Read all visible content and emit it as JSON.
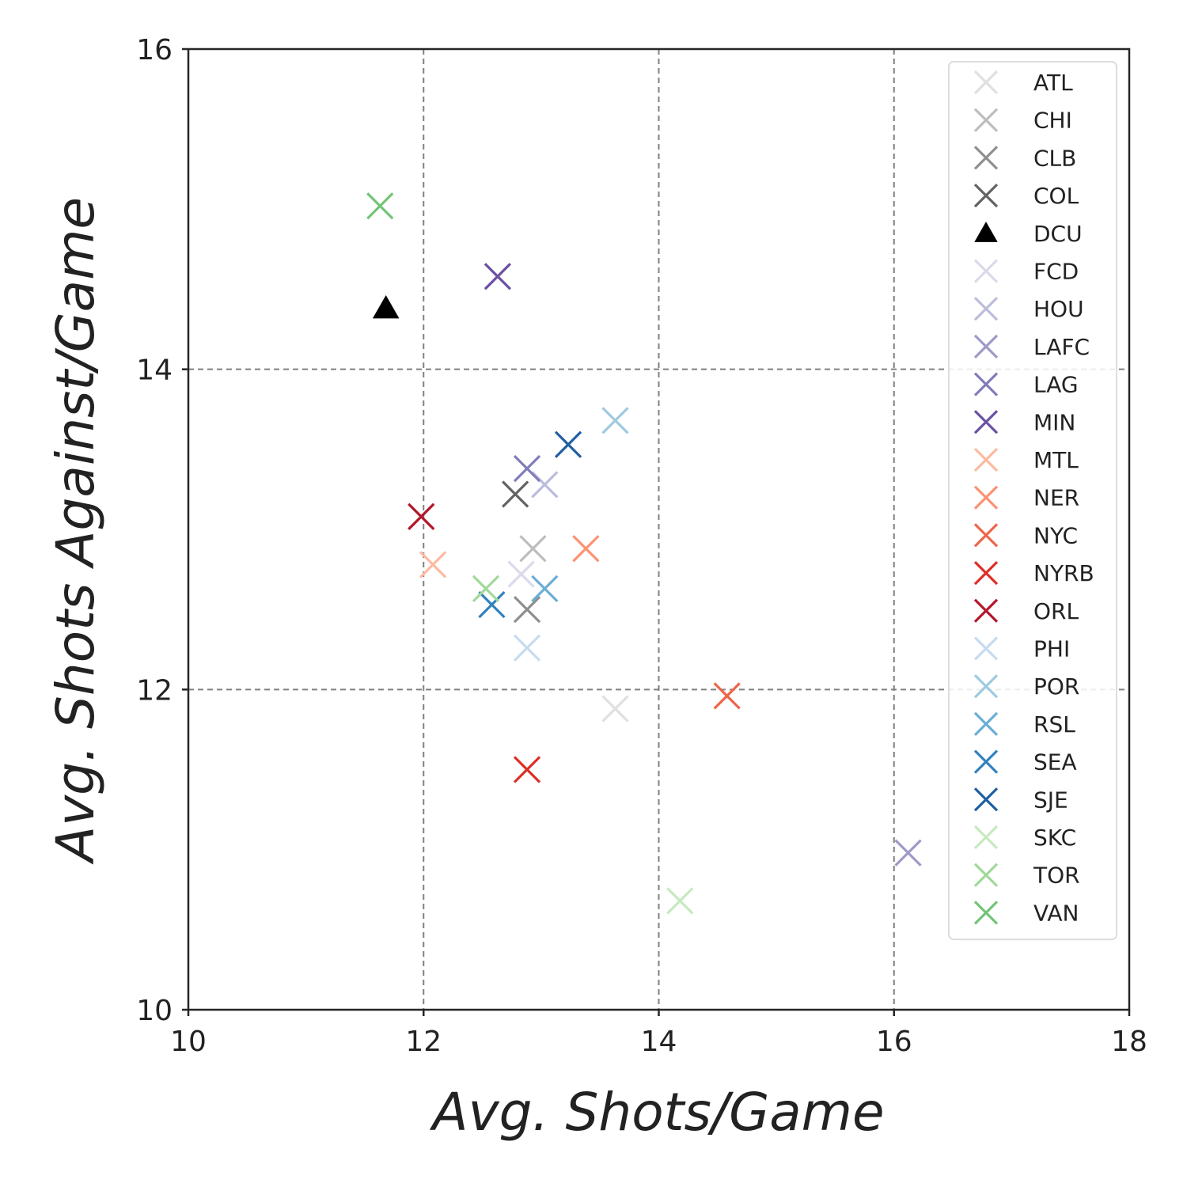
{
  "chart_data": {
    "type": "scatter",
    "title": "",
    "xlabel": "Avg. Shots/Game",
    "ylabel": "Avg. Shots Against/Game",
    "xlim": [
      10,
      18
    ],
    "ylim": [
      10,
      16
    ],
    "xticks": [
      "10",
      "12",
      "14",
      "16",
      "18"
    ],
    "yticks": [
      "10",
      "12",
      "14",
      "16"
    ],
    "grid": true,
    "legend_position": "right, inside plot area",
    "series": [
      {
        "name": "ATL",
        "marker": "x",
        "color": "#e0e0e0",
        "x": 13.63,
        "y": 11.88
      },
      {
        "name": "CHI",
        "marker": "x",
        "color": "#bdbdbd",
        "x": 12.93,
        "y": 12.88
      },
      {
        "name": "CLB",
        "marker": "x",
        "color": "#8f8f8f",
        "x": 12.88,
        "y": 12.5
      },
      {
        "name": "COL",
        "marker": "x",
        "color": "#636363",
        "x": 12.78,
        "y": 13.22
      },
      {
        "name": "DCU",
        "marker": "triangle",
        "color": "#000000",
        "x": 11.68,
        "y": 14.38
      },
      {
        "name": "FCD",
        "marker": "x",
        "color": "#dadaeb",
        "x": 12.83,
        "y": 12.72
      },
      {
        "name": "HOU",
        "marker": "x",
        "color": "#bcbddc",
        "x": 13.03,
        "y": 13.28
      },
      {
        "name": "LAFC",
        "marker": "x",
        "color": "#9e9ac8",
        "x": 16.12,
        "y": 10.98
      },
      {
        "name": "LAG",
        "marker": "x",
        "color": "#807dba",
        "x": 12.88,
        "y": 13.38
      },
      {
        "name": "MIN",
        "marker": "x",
        "color": "#6a51a3",
        "x": 12.63,
        "y": 14.58
      },
      {
        "name": "MTL",
        "marker": "x",
        "color": "#fcbba1",
        "x": 12.08,
        "y": 12.78
      },
      {
        "name": "NER",
        "marker": "x",
        "color": "#fc9272",
        "x": 13.38,
        "y": 12.88
      },
      {
        "name": "NYC",
        "marker": "x",
        "color": "#ef6548",
        "x": 14.58,
        "y": 11.96
      },
      {
        "name": "NYRB",
        "marker": "x",
        "color": "#de2d26",
        "x": 12.88,
        "y": 11.5
      },
      {
        "name": "ORL",
        "marker": "x",
        "color": "#b2182b",
        "x": 11.98,
        "y": 13.08
      },
      {
        "name": "PHI",
        "marker": "x",
        "color": "#c6dbef",
        "x": 12.88,
        "y": 12.26
      },
      {
        "name": "POR",
        "marker": "x",
        "color": "#9ecae1",
        "x": 13.63,
        "y": 13.68
      },
      {
        "name": "RSL",
        "marker": "x",
        "color": "#6baed6",
        "x": 13.03,
        "y": 12.63
      },
      {
        "name": "SEA",
        "marker": "x",
        "color": "#3182bd",
        "x": 12.58,
        "y": 12.53
      },
      {
        "name": "SJE",
        "marker": "x",
        "color": "#1f5fa3",
        "x": 13.23,
        "y": 13.53
      },
      {
        "name": "SKC",
        "marker": "x",
        "color": "#c7e9c0",
        "x": 14.18,
        "y": 10.68
      },
      {
        "name": "TOR",
        "marker": "x",
        "color": "#a1d99b",
        "x": 12.53,
        "y": 12.63
      },
      {
        "name": "VAN",
        "marker": "x",
        "color": "#74c476",
        "x": 11.63,
        "y": 15.02
      }
    ]
  }
}
